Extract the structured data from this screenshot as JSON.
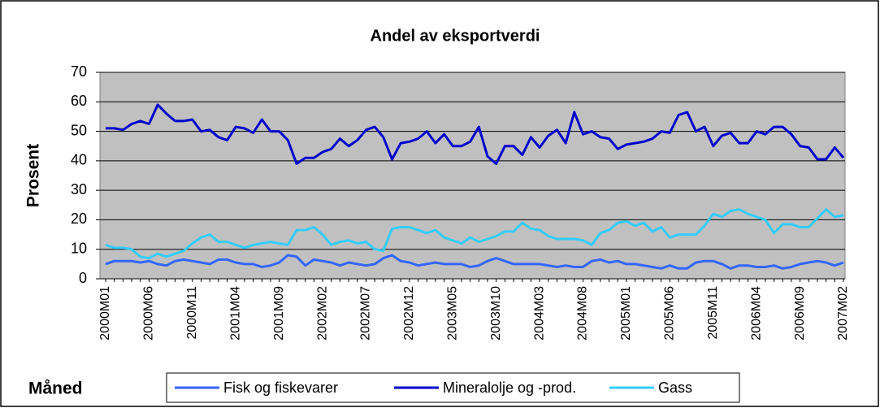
{
  "chart_data": {
    "type": "line",
    "title": "Andel av eksportverdi",
    "y_label": "Prosent",
    "x_label": "Måned",
    "categories": [
      "2000M01",
      null,
      null,
      null,
      null,
      "2000M06",
      null,
      null,
      null,
      null,
      "2000M11",
      null,
      null,
      null,
      null,
      "2001M04",
      null,
      null,
      null,
      null,
      "2001M09",
      null,
      null,
      null,
      null,
      "2002M02",
      null,
      null,
      null,
      null,
      "2002M07",
      null,
      null,
      null,
      null,
      "2002M12",
      null,
      null,
      null,
      null,
      "2003M05",
      null,
      null,
      null,
      null,
      "2003M10",
      null,
      null,
      null,
      null,
      "2004M03",
      null,
      null,
      null,
      null,
      "2004M08",
      null,
      null,
      null,
      null,
      "2005M01",
      null,
      null,
      null,
      null,
      "2005M06",
      null,
      null,
      null,
      null,
      "2005M11",
      null,
      null,
      null,
      null,
      "2006M04",
      null,
      null,
      null,
      null,
      "2006M09",
      null,
      null,
      null,
      null,
      "2007M02"
    ],
    "series": [
      {
        "name": "Fisk og fiskevarer",
        "color": "#3366ff",
        "values": [
          5,
          6,
          6,
          6,
          5.5,
          6,
          5,
          4.5,
          6,
          6.5,
          6,
          5.5,
          5,
          6.5,
          6.5,
          5.5,
          5,
          5,
          4,
          4.5,
          5.5,
          8,
          7.5,
          4.5,
          6.5,
          6,
          5.5,
          4.5,
          5.5,
          5,
          4.5,
          5,
          7,
          8,
          6,
          5.5,
          4.5,
          5,
          5.5,
          5,
          5,
          5,
          4,
          4.5,
          6,
          7,
          6,
          5,
          5,
          5,
          5,
          4.5,
          4,
          4.5,
          4,
          4,
          6,
          6.5,
          5.5,
          6,
          5,
          5,
          4.5,
          4,
          3.5,
          4.5,
          3.5,
          3.5,
          5.5,
          6,
          6,
          5,
          3.5,
          4.5,
          4.5,
          4,
          4,
          4.5,
          3.5,
          4,
          5,
          5.5,
          6,
          5.5,
          4.5,
          5.5
        ]
      },
      {
        "name": "Mineralolje og -prod.",
        "color": "#0000cc",
        "values": [
          51,
          51,
          50.5,
          52.5,
          53.5,
          52.5,
          59,
          56,
          53.5,
          53.5,
          54,
          50,
          50.5,
          48,
          47,
          51.5,
          51,
          49.5,
          54,
          50,
          50,
          47,
          39,
          41,
          41,
          43,
          44,
          47.5,
          45,
          47,
          50.5,
          51.5,
          48,
          40.5,
          46,
          46.5,
          47.5,
          50,
          46,
          49,
          45,
          45,
          46.5,
          51.5,
          41.5,
          39,
          45,
          45,
          42,
          48,
          44.5,
          48.5,
          50.5,
          46,
          56.5,
          49,
          50,
          48,
          47.5,
          44,
          45.5,
          46,
          46.5,
          47.5,
          50,
          49.5,
          55.5,
          56.5,
          50,
          51.5,
          45,
          48.5,
          49.5,
          46,
          46,
          50,
          49,
          51.5,
          51.5,
          49,
          45,
          44.5,
          40.5,
          40.5,
          44.5,
          41
        ]
      },
      {
        "name": "Gass",
        "color": "#33ccff",
        "values": [
          11.5,
          10.5,
          10.5,
          10,
          7.5,
          7,
          8.5,
          7.5,
          8.5,
          9.5,
          12,
          14,
          15,
          12.5,
          12.5,
          11.5,
          10.5,
          11.5,
          12,
          12.5,
          12,
          11.5,
          16.5,
          16.5,
          17.5,
          15,
          11.5,
          12.5,
          13,
          12,
          12.5,
          10,
          9.5,
          17,
          17.5,
          17.5,
          16.5,
          15.5,
          16.5,
          14,
          13,
          12,
          14,
          12.5,
          13.5,
          14.5,
          16,
          16,
          19,
          17,
          16.5,
          14.5,
          13.5,
          13.5,
          13.5,
          13,
          11.5,
          15.5,
          16.5,
          19,
          19.5,
          18,
          19,
          16,
          17.5,
          14,
          15,
          15,
          15,
          18,
          22,
          21,
          23,
          23.5,
          22,
          21,
          20,
          15.5,
          18.5,
          18.5,
          17.5,
          17.5,
          20.5,
          23.5,
          21,
          21.5
        ]
      }
    ],
    "ylim": [
      0,
      70
    ],
    "yticks": [
      0,
      10,
      20,
      30,
      40,
      50,
      60,
      70
    ],
    "grid": true,
    "legend": "bottom",
    "plot_background": "#c0c0c0"
  }
}
